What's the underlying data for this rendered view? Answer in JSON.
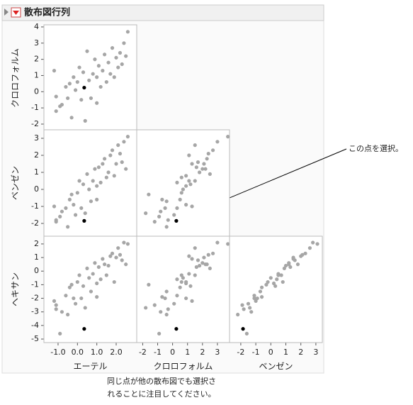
{
  "chart_data": {
    "type": "scatter_matrix",
    "title": "散布図行列",
    "color": "#a6a6a6",
    "selected_color": "#000000",
    "selected": 15,
    "variables": [
      {
        "name": "エーテル",
        "xlim": [
          -1.73,
          3.06
        ],
        "xticks": [
          {
            "value": -1,
            "label": "-1.0"
          },
          {
            "value": 0,
            "label": "0.0"
          },
          {
            "value": 1,
            "label": "1.0"
          },
          {
            "value": 2,
            "label": "2.0"
          }
        ],
        "values": [
          -1.2,
          -1.1,
          -1.1,
          -0.8,
          -0.6,
          -0.5,
          -0.4,
          -0.3,
          -0.2,
          -0.1,
          0.0,
          0.1,
          0.2,
          0.3,
          0.4,
          0.35,
          0.5,
          0.6,
          0.7,
          0.8,
          0.9,
          1.0,
          1.0,
          1.1,
          1.2,
          1.3,
          1.4,
          1.5,
          1.6,
          1.7,
          1.8,
          1.9,
          2.0,
          2.1,
          2.2,
          2.3,
          2.4,
          2.5,
          2.6,
          -0.9
        ]
      },
      {
        "name": "クロロフォルム",
        "xlim": [
          -2.4,
          3.81
        ],
        "xticks": [
          -2,
          -1,
          0,
          1,
          2,
          3
        ],
        "ylim": [
          -2.44,
          4.13
        ],
        "yticks": [
          -2,
          -1,
          0,
          1,
          2,
          3,
          4
        ],
        "values": [
          1.3,
          -0.3,
          -1.2,
          -0.8,
          0.3,
          -0.4,
          0.5,
          -1.6,
          0.9,
          0.1,
          0.6,
          1.5,
          -0.5,
          1.2,
          -1.8,
          0.25,
          2.5,
          0.7,
          -0.4,
          1.1,
          2.0,
          -0.7,
          0.9,
          1.6,
          0.3,
          1.3,
          2.3,
          0.6,
          1.8,
          1.1,
          2.7,
          0.9,
          2.1,
          1.5,
          2.4,
          1.7,
          3.0,
          2.2,
          3.7,
          -0.9
        ]
      },
      {
        "name": "ベンゼン",
        "xlim": [
          -2.75,
          3.43
        ],
        "xticks": [
          -2,
          -1,
          0,
          1,
          2,
          3
        ],
        "ylim": [
          -2.75,
          3.5
        ],
        "yticks": [
          -2,
          -1,
          0,
          1,
          2,
          3
        ],
        "values": [
          -1.0,
          -1.8,
          -1.9,
          -1.3,
          -1.1,
          -2.2,
          -0.6,
          -0.3,
          -0.9,
          -1.5,
          -0.2,
          0.5,
          -1.1,
          0.3,
          -1.4,
          -1.85,
          0.9,
          0.0,
          -0.7,
          0.5,
          1.2,
          -0.6,
          0.2,
          1.3,
          0.4,
          1.5,
          1.8,
          0.7,
          1.0,
          2.0,
          2.3,
          0.8,
          1.5,
          2.6,
          2.1,
          1.6,
          2.8,
          1.2,
          3.1,
          -1.6
        ]
      },
      {
        "name": "ヘキサン",
        "ylim": [
          -5.26,
          2.57
        ],
        "yticks": [
          -5,
          -4,
          -3,
          -2,
          -1,
          0,
          1,
          2
        ],
        "values": [
          -2.2,
          -2.8,
          -2.5,
          -3.0,
          -1.8,
          -3.2,
          -1.2,
          -1.0,
          -2.0,
          -2.4,
          -0.8,
          -0.3,
          -2.0,
          -1.1,
          -2.7,
          -4.25,
          0.2,
          -0.5,
          -1.5,
          -0.2,
          0.6,
          -1.9,
          -0.9,
          0.3,
          -0.6,
          0.9,
          0.5,
          -0.3,
          0.4,
          1.1,
          1.3,
          -0.8,
          1.0,
          1.7,
          1.2,
          0.8,
          2.1,
          0.5,
          2.0,
          -4.6
        ]
      }
    ],
    "annotation": "この点を選択。",
    "caption": [
      "同じ点が他の散布図でも選択さ",
      "れることに注目してください。"
    ]
  }
}
